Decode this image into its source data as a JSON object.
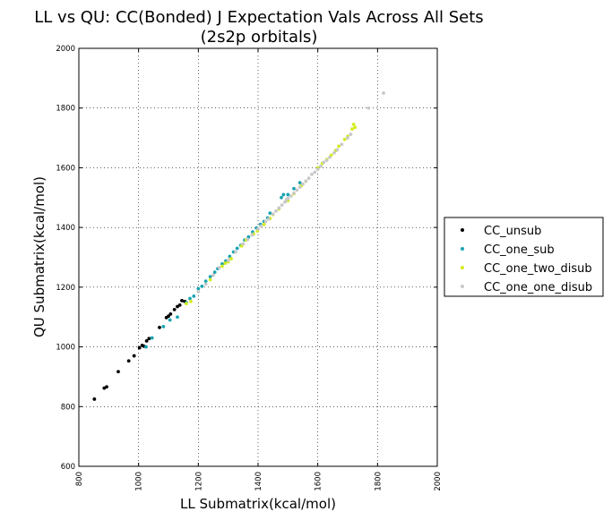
{
  "chart_data": {
    "type": "scatter",
    "title": "LL vs QU: CC(Bonded) J Expectation Vals Across All Sets",
    "subtitle": "(2s2p orbitals)",
    "xlabel": "LL Submatrix(kcal/mol)",
    "ylabel": "QU Submatrix(kcal/mol)",
    "xlim": [
      800,
      2000
    ],
    "ylim": [
      600,
      2000
    ],
    "x_ticks": [
      "800",
      "1000",
      "1200",
      "1400",
      "1600",
      "1800",
      "2000"
    ],
    "y_ticks": [
      "600",
      "800",
      "1000",
      "1200",
      "1400",
      "1600",
      "1800",
      "2000"
    ],
    "grid": true,
    "legend_position": "outside-right",
    "series": [
      {
        "name": "CC_unsub",
        "color": "#000000",
        "points": [
          [
            852,
            825
          ],
          [
            885,
            862
          ],
          [
            893,
            866
          ],
          [
            932,
            917
          ],
          [
            967,
            953
          ],
          [
            985,
            970
          ],
          [
            1003,
            997
          ],
          [
            1012,
            1005
          ],
          [
            1018,
            1002
          ],
          [
            1027,
            1020
          ],
          [
            1035,
            1028
          ],
          [
            1070,
            1065
          ],
          [
            1093,
            1098
          ],
          [
            1100,
            1103
          ],
          [
            1107,
            1110
          ],
          [
            1120,
            1125
          ],
          [
            1130,
            1135
          ],
          [
            1138,
            1140
          ],
          [
            1145,
            1155
          ],
          [
            1155,
            1152
          ]
        ]
      },
      {
        "name": "CC_one_sub",
        "color": "#1aa3b2",
        "points": [
          [
            1025,
            1000
          ],
          [
            1045,
            1030
          ],
          [
            1083,
            1068
          ],
          [
            1105,
            1090
          ],
          [
            1130,
            1100
          ],
          [
            1160,
            1148
          ],
          [
            1172,
            1162
          ],
          [
            1185,
            1170
          ],
          [
            1200,
            1195
          ],
          [
            1212,
            1203
          ],
          [
            1225,
            1220
          ],
          [
            1240,
            1235
          ],
          [
            1255,
            1250
          ],
          [
            1265,
            1262
          ],
          [
            1280,
            1278
          ],
          [
            1292,
            1288
          ],
          [
            1305,
            1303
          ],
          [
            1318,
            1318
          ],
          [
            1330,
            1330
          ],
          [
            1342,
            1340
          ],
          [
            1355,
            1358
          ],
          [
            1368,
            1368
          ],
          [
            1382,
            1385
          ],
          [
            1395,
            1398
          ],
          [
            1408,
            1410
          ],
          [
            1420,
            1420
          ],
          [
            1432,
            1432
          ],
          [
            1440,
            1448
          ],
          [
            1478,
            1500
          ],
          [
            1485,
            1510
          ],
          [
            1500,
            1510
          ],
          [
            1520,
            1530
          ],
          [
            1540,
            1550
          ]
        ]
      },
      {
        "name": "CC_one_two_disub",
        "color": "#d4ec1e",
        "points": [
          [
            1160,
            1145
          ],
          [
            1175,
            1152
          ],
          [
            1240,
            1225
          ],
          [
            1280,
            1270
          ],
          [
            1290,
            1280
          ],
          [
            1300,
            1285
          ],
          [
            1310,
            1295
          ],
          [
            1345,
            1338
          ],
          [
            1360,
            1358
          ],
          [
            1385,
            1378
          ],
          [
            1398,
            1388
          ],
          [
            1420,
            1410
          ],
          [
            1440,
            1430
          ],
          [
            1450,
            1443
          ],
          [
            1470,
            1462
          ],
          [
            1500,
            1490
          ],
          [
            1520,
            1513
          ],
          [
            1545,
            1540
          ],
          [
            1560,
            1555
          ],
          [
            1600,
            1600
          ],
          [
            1615,
            1615
          ],
          [
            1630,
            1628
          ],
          [
            1645,
            1642
          ],
          [
            1660,
            1658
          ],
          [
            1670,
            1672
          ],
          [
            1690,
            1695
          ],
          [
            1700,
            1705
          ],
          [
            1715,
            1730
          ],
          [
            1720,
            1745
          ],
          [
            1725,
            1735
          ]
        ]
      },
      {
        "name": "CC_one_one_disub",
        "color": "#c8c8c8",
        "points": [
          [
            1200,
            1185
          ],
          [
            1225,
            1210
          ],
          [
            1250,
            1240
          ],
          [
            1270,
            1265
          ],
          [
            1300,
            1290
          ],
          [
            1325,
            1318
          ],
          [
            1350,
            1345
          ],
          [
            1365,
            1360
          ],
          [
            1380,
            1375
          ],
          [
            1400,
            1395
          ],
          [
            1410,
            1405
          ],
          [
            1425,
            1420
          ],
          [
            1435,
            1428
          ],
          [
            1450,
            1445
          ],
          [
            1460,
            1455
          ],
          [
            1470,
            1465
          ],
          [
            1480,
            1475
          ],
          [
            1490,
            1485
          ],
          [
            1495,
            1493
          ],
          [
            1500,
            1497
          ],
          [
            1510,
            1505
          ],
          [
            1520,
            1515
          ],
          [
            1530,
            1525
          ],
          [
            1540,
            1535
          ],
          [
            1550,
            1545
          ],
          [
            1560,
            1555
          ],
          [
            1570,
            1565
          ],
          [
            1580,
            1578
          ],
          [
            1590,
            1585
          ],
          [
            1600,
            1595
          ],
          [
            1610,
            1605
          ],
          [
            1620,
            1618
          ],
          [
            1630,
            1625
          ],
          [
            1640,
            1635
          ],
          [
            1655,
            1650
          ],
          [
            1665,
            1660
          ],
          [
            1680,
            1678
          ],
          [
            1700,
            1700
          ],
          [
            1710,
            1712
          ],
          [
            1770,
            1800
          ],
          [
            1820,
            1850
          ]
        ]
      }
    ]
  }
}
